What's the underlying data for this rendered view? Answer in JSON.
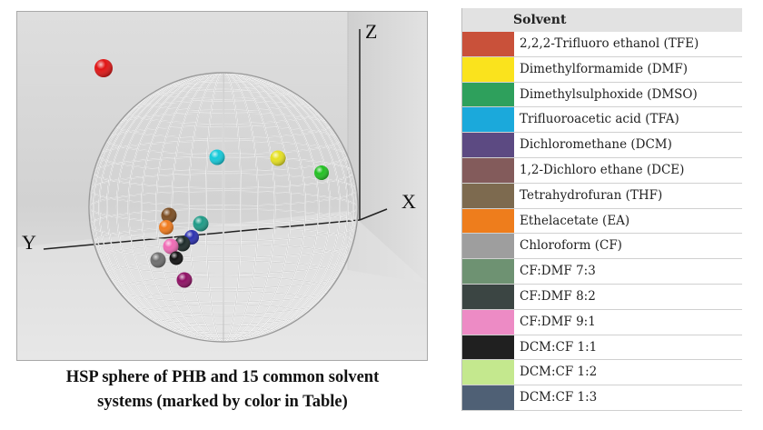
{
  "figure": {
    "axes": {
      "z": "Z",
      "x": "X",
      "y": "Y"
    },
    "caption": [
      "HSP sphere of PHB and 15 common solvent",
      "systems (marked by color in Table)"
    ]
  },
  "legend": {
    "header": "Solvent",
    "items": [
      {
        "label": "2,2,2-Trifluoro ethanol (TFE)",
        "color": "#c9513a"
      },
      {
        "label": "Dimethylformamide (DMF)",
        "color": "#fae31d"
      },
      {
        "label": "Dimethylsulphoxide (DMSO)",
        "color": "#2ea05c"
      },
      {
        "label": "Trifluoroacetic acid (TFA)",
        "color": "#1ba9db"
      },
      {
        "label": "Dichloromethane (DCM)",
        "color": "#5c4a82"
      },
      {
        "label": "1,2-Dichloro ethane (DCE)",
        "color": "#835b5b"
      },
      {
        "label": "Tetrahydrofuran (THF)",
        "color": "#7d6a4f"
      },
      {
        "label": "Ethelacetate (EA)",
        "color": "#ee7d1c"
      },
      {
        "label": "Chloroform (CF)",
        "color": "#9e9e9e"
      },
      {
        "label": "CF:DMF 7:3",
        "color": "#6e9272"
      },
      {
        "label": "CF:DMF 8:2",
        "color": "#3b4543"
      },
      {
        "label": "CF:DMF 9:1",
        "color": "#ed8bc5"
      },
      {
        "label": "DCM:CF 1:1",
        "color": "#202020"
      },
      {
        "label": "DCM:CF 1:2",
        "color": "#c4e88e"
      },
      {
        "label": "DCM:CF 1:3",
        "color": "#4f6075"
      }
    ]
  }
}
